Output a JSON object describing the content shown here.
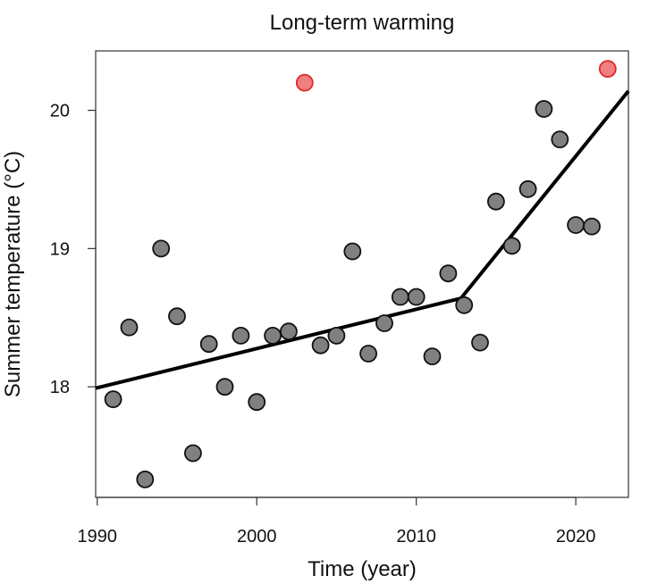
{
  "chart_data": {
    "type": "scatter",
    "title": "Long-term warming",
    "xlabel": "Time (year)",
    "ylabel": "Summer temperature (°C)",
    "xlim": [
      1989.9,
      2023.3
    ],
    "ylim": [
      17.2,
      20.43
    ],
    "x_ticks": [
      1990,
      2000,
      2010,
      2020
    ],
    "y_ticks": [
      18,
      19,
      20
    ],
    "grid": false,
    "legend": "none",
    "series": [
      {
        "color": "#808080",
        "edge_color": "#111111",
        "points": [
          {
            "x": 1991,
            "y": 17.91
          },
          {
            "x": 1992,
            "y": 18.43
          },
          {
            "x": 1993,
            "y": 17.33
          },
          {
            "x": 1994,
            "y": 19.0
          },
          {
            "x": 1995,
            "y": 18.51
          },
          {
            "x": 1996,
            "y": 17.52
          },
          {
            "x": 1997,
            "y": 18.31
          },
          {
            "x": 1998,
            "y": 18.0
          },
          {
            "x": 1999,
            "y": 18.37
          },
          {
            "x": 2000,
            "y": 17.89
          },
          {
            "x": 2001,
            "y": 18.37
          },
          {
            "x": 2002,
            "y": 18.4
          },
          {
            "x": 2004,
            "y": 18.3
          },
          {
            "x": 2005,
            "y": 18.37
          },
          {
            "x": 2006,
            "y": 18.98
          },
          {
            "x": 2007,
            "y": 18.24
          },
          {
            "x": 2008,
            "y": 18.46
          },
          {
            "x": 2009,
            "y": 18.65
          },
          {
            "x": 2010,
            "y": 18.65
          },
          {
            "x": 2011,
            "y": 18.22
          },
          {
            "x": 2012,
            "y": 18.82
          },
          {
            "x": 2013,
            "y": 18.59
          },
          {
            "x": 2014,
            "y": 18.32
          },
          {
            "x": 2015,
            "y": 19.34
          },
          {
            "x": 2016,
            "y": 19.02
          },
          {
            "x": 2017,
            "y": 19.43
          },
          {
            "x": 2018,
            "y": 20.01
          },
          {
            "x": 2019,
            "y": 19.79
          },
          {
            "x": 2020,
            "y": 19.17
          },
          {
            "x": 2021,
            "y": 19.16
          }
        ]
      },
      {
        "color": "#f07f7f",
        "edge_color": "#e0282c",
        "points": [
          {
            "x": 2003,
            "y": 20.2
          },
          {
            "x": 2022,
            "y": 20.3
          }
        ]
      }
    ],
    "trend_line": {
      "color": "#000000",
      "points": [
        {
          "x": 1989.9,
          "y": 17.99
        },
        {
          "x": 2012.8,
          "y": 18.64
        },
        {
          "x": 2023.3,
          "y": 20.14
        }
      ]
    }
  }
}
